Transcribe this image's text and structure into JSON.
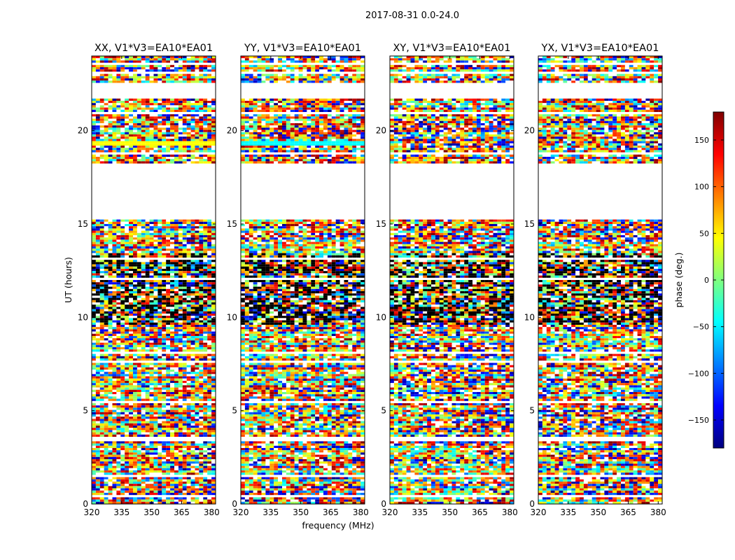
{
  "figure": {
    "suptitle": "2017-08-31 0.0-24.0",
    "xlabel": "frequency (MHz)",
    "ylabel": "UT (hours)"
  },
  "colorbar": {
    "label": "phase (deg.)",
    "range": [
      -180,
      180
    ],
    "ticks": [
      -150,
      -100,
      -50,
      0,
      50,
      100,
      150
    ],
    "tick_labels": [
      "−150",
      "−100",
      "−50",
      "0",
      "50",
      "100",
      "150"
    ],
    "colormap": "jet",
    "colormap_stops": [
      "#00007f",
      "#0000ff",
      "#007fff",
      "#00ffff",
      "#7fff7f",
      "#ffff00",
      "#ff7f00",
      "#ff0000",
      "#7f0000"
    ]
  },
  "chart_data": {
    "type": "heatmap",
    "description_free": true,
    "x_range_mhz": [
      320,
      382
    ],
    "x_ticks": [
      320,
      335,
      350,
      365,
      380
    ],
    "y_range_hours": [
      0,
      24
    ],
    "y_ticks": [
      0,
      5,
      10,
      15,
      20
    ],
    "value": "phase (deg.)",
    "flagged_time_ranges_hours": [
      [
        0.35,
        0.5
      ],
      [
        1.45,
        1.55
      ],
      [
        3.4,
        3.55
      ],
      [
        5.45,
        5.55
      ],
      [
        7.55,
        7.7
      ],
      [
        8.05,
        8.15
      ],
      [
        8.95,
        9.05
      ],
      [
        12.0,
        12.15
      ],
      [
        13.1,
        13.2
      ],
      [
        15.2,
        18.2
      ],
      [
        18.75,
        18.85
      ],
      [
        19.75,
        19.85
      ],
      [
        20.9,
        21.05
      ],
      [
        21.7,
        22.3
      ],
      [
        22.3,
        22.55
      ],
      [
        23.1,
        23.2
      ],
      [
        23.55,
        23.65
      ]
    ],
    "panels": [
      {
        "title": "XX, V1*V3=EA10*EA01",
        "dominant_band_hours": [
          19.2,
          19.4
        ],
        "dominant_band_color": "#ffff00"
      },
      {
        "title": "YY, V1*V3=EA10*EA01",
        "dominant_band_hours": [
          19.2,
          19.4
        ],
        "dominant_band_color": "#00ffff"
      },
      {
        "title": "XY, V1*V3=EA10*EA01",
        "dominant_band_hours": null,
        "dominant_band_color": null
      },
      {
        "title": "YX, V1*V3=EA10*EA01",
        "dominant_band_hours": null,
        "dominant_band_color": null
      }
    ]
  }
}
